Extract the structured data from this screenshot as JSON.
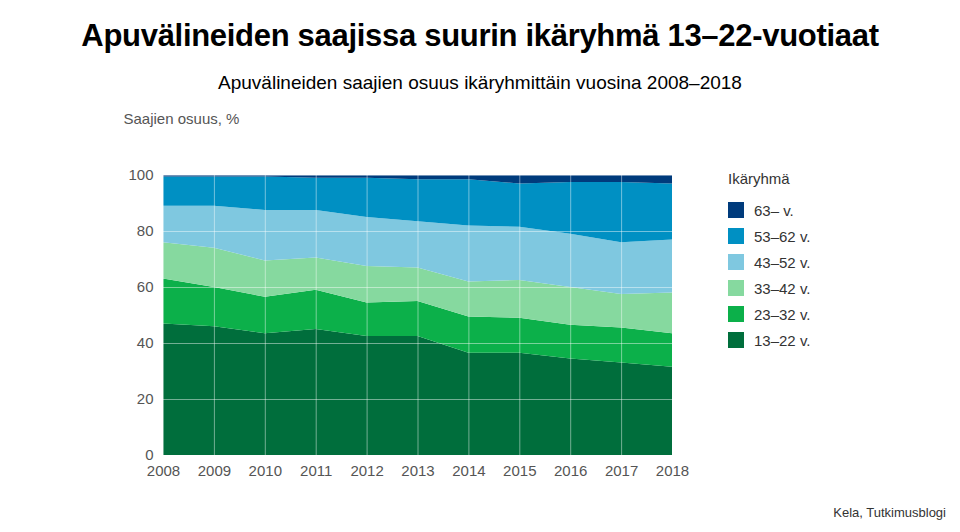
{
  "chart_data": {
    "type": "area",
    "stacked": true,
    "title": "Apuvälineiden saajissa suurin ikäryhmä 13–22-vuotiaat",
    "subtitle": "Apuvälineiden saajien osuus ikäryhmittäin vuosina 2008–2018",
    "y_label": "Saajien osuus, %",
    "legend_title": "Ikäryhmä",
    "caption": "Kela, Tutkimusblogi",
    "legend": "right",
    "grid": true,
    "x": [
      2008,
      2009,
      2010,
      2011,
      2012,
      2013,
      2014,
      2015,
      2016,
      2017,
      2018
    ],
    "xlim": [
      2008,
      2018
    ],
    "xticks": [
      2008,
      2009,
      2010,
      2011,
      2012,
      2013,
      2014,
      2015,
      2016,
      2017,
      2018
    ],
    "ylim": [
      0,
      100
    ],
    "yticks": [
      0,
      20,
      40,
      60,
      80,
      100
    ],
    "series": [
      {
        "name": "13–22 v.",
        "color": "#006e3c",
        "values": [
          47,
          46,
          43.5,
          45,
          42.5,
          42.5,
          36.5,
          36.5,
          34.5,
          33,
          31.5
        ]
      },
      {
        "name": "23–32 v.",
        "color": "#0cb04a",
        "values": [
          16,
          14,
          13,
          14,
          12,
          12.5,
          13,
          12.5,
          12,
          12.5,
          12
        ]
      },
      {
        "name": "33–42 v.",
        "color": "#86d99f",
        "values": [
          13,
          14,
          13,
          11.5,
          13,
          12,
          12.5,
          13.5,
          13.5,
          12,
          14.5
        ]
      },
      {
        "name": "43–52 v.",
        "color": "#7fc8e0",
        "values": [
          13,
          15,
          18,
          17,
          17.5,
          16.5,
          20,
          19,
          19,
          18.5,
          19
        ]
      },
      {
        "name": "53–62 v.",
        "color": "#0090c3",
        "values": [
          10.5,
          10.5,
          12,
          11.5,
          14,
          15,
          16.5,
          15.5,
          18.5,
          21.5,
          20
        ]
      },
      {
        "name": "63– v.",
        "color": "#003b7c",
        "values": [
          0.5,
          0.5,
          0.5,
          1,
          1,
          1.5,
          1.5,
          3,
          2.5,
          2.5,
          3
        ]
      }
    ]
  }
}
